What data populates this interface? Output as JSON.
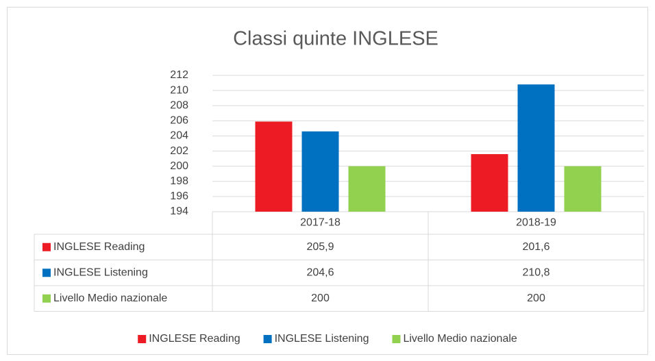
{
  "chart_data": {
    "type": "bar",
    "title": "Classi quinte INGLESE",
    "categories": [
      "2017-18",
      "2018-19"
    ],
    "series": [
      {
        "name": "INGLESE Reading",
        "color": "#ed1c24",
        "values": [
          205.9,
          201.6
        ],
        "value_labels": [
          "205,9",
          "201,6"
        ]
      },
      {
        "name": "INGLESE Listening",
        "color": "#0070c0",
        "values": [
          204.6,
          210.8
        ],
        "value_labels": [
          "204,6",
          "210,8"
        ]
      },
      {
        "name": "Livello Medio nazionale",
        "color": "#92d050",
        "values": [
          200,
          200
        ]
      }
    ],
    "ylim": [
      194,
      212
    ],
    "yticks": [
      194,
      196,
      198,
      200,
      202,
      204,
      206,
      208,
      210,
      212
    ],
    "grid": true,
    "legend": "bottom",
    "data_table": true
  }
}
